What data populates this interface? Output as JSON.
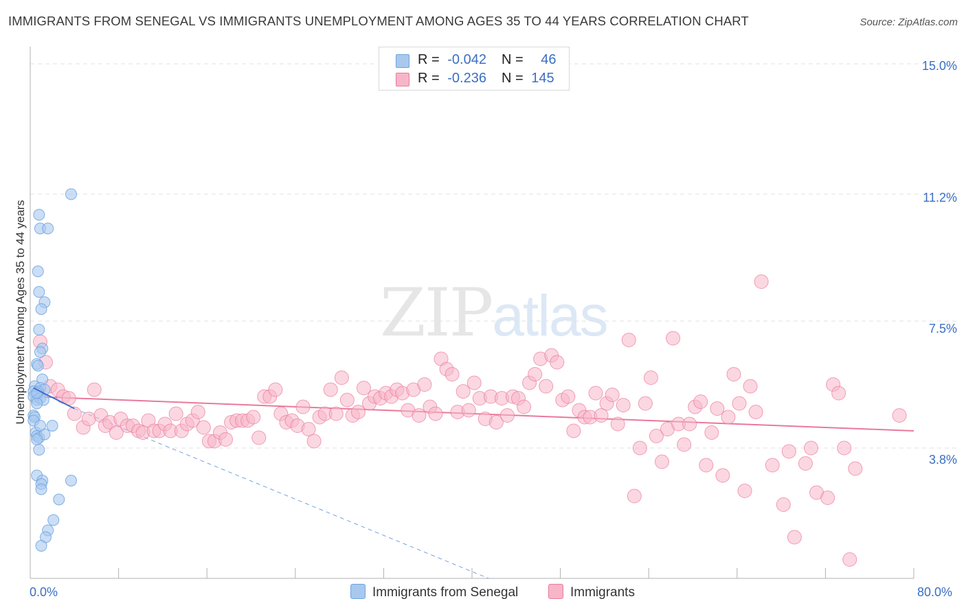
{
  "header": {
    "title": "IMMIGRANTS FROM SENEGAL VS IMMIGRANTS UNEMPLOYMENT AMONG AGES 35 TO 44 YEARS CORRELATION CHART",
    "source": "Source: ZipAtlas.com"
  },
  "watermark": {
    "zip": "ZIP",
    "atlas": "atlas"
  },
  "legend": {
    "rows": [
      {
        "r_label": "R = ",
        "r_value": "-0.042",
        "n_label": "N = ",
        "n_value": "46",
        "color": "#a9c8ee"
      },
      {
        "r_label": "R = ",
        "r_value": "-0.236",
        "n_label": "N = ",
        "n_value": "145",
        "color": "#f7b6c8"
      }
    ]
  },
  "bottom_legend": {
    "items": [
      {
        "label": "Immigrants from Senegal",
        "color": "#a9c8ee"
      },
      {
        "label": "Immigrants",
        "color": "#f7b6c8"
      }
    ]
  },
  "chart_data": {
    "type": "scatter",
    "title": "IMMIGRANTS FROM SENEGAL VS IMMIGRANTS UNEMPLOYMENT AMONG AGES 35 TO 44 YEARS CORRELATION CHART",
    "xlabel": "",
    "ylabel": "Unemployment Among Ages 35 to 44 years",
    "xlim": [
      0,
      80
    ],
    "ylim": [
      0,
      15.3
    ],
    "x_tick_labels": [
      "0.0%",
      "80.0%"
    ],
    "y_ticks": [
      3.8,
      7.5,
      11.2,
      15.0
    ],
    "y_tick_labels": [
      "3.8%",
      "7.5%",
      "11.2%",
      "15.0%"
    ],
    "grid": true,
    "series": [
      {
        "name": "Immigrants from Senegal",
        "color": "#6fa3e0",
        "fill": "#a9c8ee",
        "R": -0.042,
        "N": 46,
        "trend_solid": [
          [
            0.3,
            5.55
          ],
          [
            4.0,
            4.95
          ]
        ],
        "trend_dashed": [
          [
            4.0,
            4.95
          ],
          [
            41.5,
            0.0
          ]
        ],
        "points": [
          [
            3.7,
            11.2
          ],
          [
            0.8,
            10.6
          ],
          [
            0.9,
            10.2
          ],
          [
            1.6,
            10.2
          ],
          [
            0.7,
            8.95
          ],
          [
            0.8,
            8.35
          ],
          [
            1.3,
            8.05
          ],
          [
            1.0,
            7.85
          ],
          [
            0.8,
            7.25
          ],
          [
            1.1,
            6.7
          ],
          [
            0.9,
            6.6
          ],
          [
            0.6,
            6.25
          ],
          [
            0.7,
            6.2
          ],
          [
            1.1,
            5.8
          ],
          [
            0.4,
            5.6
          ],
          [
            0.9,
            5.55
          ],
          [
            1.3,
            5.5
          ],
          [
            0.3,
            5.45
          ],
          [
            0.7,
            5.45
          ],
          [
            0.3,
            5.3
          ],
          [
            0.6,
            5.2
          ],
          [
            0.9,
            5.25
          ],
          [
            1.2,
            5.2
          ],
          [
            0.6,
            5.1
          ],
          [
            0.3,
            4.75
          ],
          [
            0.4,
            4.7
          ],
          [
            0.3,
            4.6
          ],
          [
            2.0,
            4.45
          ],
          [
            0.5,
            4.25
          ],
          [
            0.6,
            4.15
          ],
          [
            0.8,
            4.1
          ],
          [
            1.3,
            4.2
          ],
          [
            0.6,
            4.05
          ],
          [
            0.8,
            3.75
          ],
          [
            0.6,
            3.0
          ],
          [
            1.1,
            2.85
          ],
          [
            1.0,
            2.75
          ],
          [
            3.7,
            2.85
          ],
          [
            1.0,
            2.6
          ],
          [
            2.6,
            2.3
          ],
          [
            2.1,
            1.7
          ],
          [
            1.6,
            1.4
          ],
          [
            1.4,
            1.2
          ],
          [
            1.0,
            0.95
          ],
          [
            0.6,
            5.4
          ],
          [
            0.9,
            4.45
          ]
        ]
      },
      {
        "name": "Immigrants",
        "color": "#e9799c",
        "fill": "#f7b6c8",
        "R": -0.236,
        "N": 145,
        "trend_solid": [
          [
            0.3,
            5.3
          ],
          [
            80.0,
            4.3
          ]
        ],
        "points": [
          [
            0.9,
            6.9
          ],
          [
            1.4,
            6.3
          ],
          [
            1.8,
            5.6
          ],
          [
            2.5,
            5.5
          ],
          [
            3.0,
            5.3
          ],
          [
            3.5,
            5.25
          ],
          [
            4.0,
            4.8
          ],
          [
            4.8,
            4.4
          ],
          [
            5.3,
            4.65
          ],
          [
            5.8,
            5.5
          ],
          [
            6.4,
            4.75
          ],
          [
            6.8,
            4.45
          ],
          [
            7.2,
            4.55
          ],
          [
            7.8,
            4.25
          ],
          [
            8.2,
            4.65
          ],
          [
            8.8,
            4.45
          ],
          [
            9.3,
            4.45
          ],
          [
            9.8,
            4.3
          ],
          [
            10.2,
            4.25
          ],
          [
            10.7,
            4.6
          ],
          [
            11.2,
            4.3
          ],
          [
            11.7,
            4.3
          ],
          [
            12.2,
            4.5
          ],
          [
            12.7,
            4.3
          ],
          [
            13.2,
            4.8
          ],
          [
            13.7,
            4.3
          ],
          [
            14.2,
            4.5
          ],
          [
            14.7,
            4.6
          ],
          [
            15.2,
            4.85
          ],
          [
            15.7,
            4.4
          ],
          [
            16.2,
            4.0
          ],
          [
            16.7,
            4.0
          ],
          [
            17.2,
            4.25
          ],
          [
            17.7,
            4.05
          ],
          [
            18.2,
            4.55
          ],
          [
            18.7,
            4.6
          ],
          [
            19.2,
            4.6
          ],
          [
            19.7,
            4.6
          ],
          [
            20.2,
            4.7
          ],
          [
            20.7,
            4.1
          ],
          [
            21.2,
            5.3
          ],
          [
            21.7,
            5.3
          ],
          [
            22.2,
            5.5
          ],
          [
            22.7,
            4.8
          ],
          [
            23.2,
            4.55
          ],
          [
            23.7,
            4.6
          ],
          [
            24.2,
            4.45
          ],
          [
            24.7,
            5.0
          ],
          [
            25.2,
            4.35
          ],
          [
            25.7,
            4.0
          ],
          [
            26.2,
            4.7
          ],
          [
            26.7,
            4.8
          ],
          [
            27.2,
            5.5
          ],
          [
            27.7,
            4.8
          ],
          [
            28.2,
            5.85
          ],
          [
            28.7,
            5.2
          ],
          [
            29.2,
            4.75
          ],
          [
            29.7,
            4.85
          ],
          [
            30.2,
            5.55
          ],
          [
            30.7,
            5.1
          ],
          [
            31.2,
            5.3
          ],
          [
            31.7,
            5.25
          ],
          [
            32.2,
            5.4
          ],
          [
            32.7,
            5.3
          ],
          [
            33.2,
            5.5
          ],
          [
            33.7,
            5.4
          ],
          [
            34.2,
            4.9
          ],
          [
            34.7,
            5.5
          ],
          [
            35.2,
            4.75
          ],
          [
            35.7,
            5.65
          ],
          [
            36.2,
            5.0
          ],
          [
            36.7,
            4.8
          ],
          [
            37.2,
            6.4
          ],
          [
            37.7,
            6.1
          ],
          [
            38.2,
            5.95
          ],
          [
            38.7,
            4.85
          ],
          [
            39.2,
            5.45
          ],
          [
            39.7,
            4.9
          ],
          [
            40.2,
            5.7
          ],
          [
            40.7,
            5.25
          ],
          [
            41.2,
            4.65
          ],
          [
            41.7,
            5.3
          ],
          [
            42.2,
            4.55
          ],
          [
            42.7,
            5.25
          ],
          [
            43.2,
            4.75
          ],
          [
            43.7,
            5.3
          ],
          [
            44.2,
            5.25
          ],
          [
            44.7,
            5.0
          ],
          [
            45.2,
            5.7
          ],
          [
            45.7,
            5.95
          ],
          [
            46.2,
            6.4
          ],
          [
            46.7,
            5.6
          ],
          [
            47.2,
            6.5
          ],
          [
            47.7,
            6.3
          ],
          [
            48.2,
            5.2
          ],
          [
            48.7,
            5.3
          ],
          [
            49.2,
            4.3
          ],
          [
            49.7,
            4.9
          ],
          [
            50.2,
            4.7
          ],
          [
            50.7,
            4.7
          ],
          [
            51.2,
            5.4
          ],
          [
            51.7,
            4.75
          ],
          [
            52.2,
            5.1
          ],
          [
            52.7,
            5.35
          ],
          [
            53.2,
            4.5
          ],
          [
            53.7,
            5.05
          ],
          [
            54.2,
            6.95
          ],
          [
            54.7,
            2.4
          ],
          [
            55.2,
            3.8
          ],
          [
            55.7,
            5.1
          ],
          [
            56.2,
            5.85
          ],
          [
            56.7,
            4.15
          ],
          [
            57.2,
            3.4
          ],
          [
            57.7,
            4.35
          ],
          [
            58.2,
            7.0
          ],
          [
            58.7,
            4.5
          ],
          [
            59.2,
            3.9
          ],
          [
            59.7,
            4.5
          ],
          [
            60.2,
            5.0
          ],
          [
            60.7,
            5.15
          ],
          [
            61.2,
            3.3
          ],
          [
            61.7,
            4.25
          ],
          [
            62.2,
            4.95
          ],
          [
            62.7,
            3.0
          ],
          [
            63.2,
            4.7
          ],
          [
            63.7,
            5.95
          ],
          [
            64.2,
            5.1
          ],
          [
            64.7,
            2.55
          ],
          [
            65.2,
            5.6
          ],
          [
            65.7,
            4.85
          ],
          [
            66.2,
            8.65
          ],
          [
            67.2,
            3.3
          ],
          [
            68.2,
            2.15
          ],
          [
            68.7,
            3.7
          ],
          [
            69.2,
            1.2
          ],
          [
            70.2,
            3.35
          ],
          [
            70.7,
            3.8
          ],
          [
            71.2,
            2.5
          ],
          [
            72.2,
            2.35
          ],
          [
            72.7,
            5.65
          ],
          [
            73.2,
            5.4
          ],
          [
            73.7,
            3.8
          ],
          [
            74.2,
            0.55
          ],
          [
            74.7,
            3.2
          ],
          [
            78.7,
            4.75
          ]
        ]
      }
    ]
  }
}
